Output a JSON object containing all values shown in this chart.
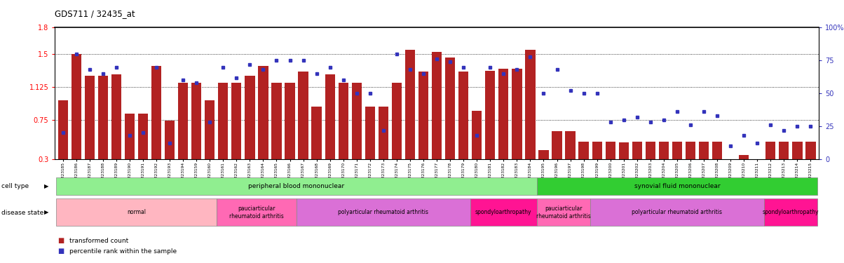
{
  "title": "GDS711 / 32435_at",
  "ylim": [
    0.3,
    1.8
  ],
  "yticks": [
    0.3,
    0.75,
    1.125,
    1.5,
    1.8
  ],
  "ytick_labels": [
    "0.3",
    "0.75",
    "1.125",
    "1.5",
    "1.8"
  ],
  "y_right_ticks": [
    0,
    25,
    50,
    75,
    100
  ],
  "y_right_labels": [
    "0",
    "25",
    "50",
    "75",
    "100%"
  ],
  "samples": [
    "GSM23185",
    "GSM23186",
    "GSM23187",
    "GSM23188",
    "GSM23189",
    "GSM23190",
    "GSM23191",
    "GSM23192",
    "GSM23193",
    "GSM23194",
    "GSM23159",
    "GSM23160",
    "GSM23161",
    "GSM23162",
    "GSM23163",
    "GSM23164",
    "GSM23165",
    "GSM23166",
    "GSM23167",
    "GSM23168",
    "GSM23169",
    "GSM23170",
    "GSM23171",
    "GSM23172",
    "GSM23173",
    "GSM23174",
    "GSM23175",
    "GSM23176",
    "GSM23177",
    "GSM23178",
    "GSM23179",
    "GSM23180",
    "GSM23181",
    "GSM23182",
    "GSM23183",
    "GSM23184",
    "GSM23195",
    "GSM23196",
    "GSM23197",
    "GSM23198",
    "GSM23199",
    "GSM23200",
    "GSM23201",
    "GSM23202",
    "GSM23203",
    "GSM23204",
    "GSM23205",
    "GSM23206",
    "GSM23207",
    "GSM23208",
    "GSM23209",
    "GSM23210",
    "GSM23211",
    "GSM23212",
    "GSM23213",
    "GSM23214",
    "GSM23215"
  ],
  "bar_heights": [
    0.97,
    1.5,
    1.25,
    1.25,
    1.27,
    0.82,
    0.82,
    1.36,
    0.74,
    1.17,
    1.17,
    0.97,
    1.17,
    1.17,
    1.25,
    1.36,
    1.17,
    1.17,
    1.3,
    0.9,
    1.27,
    1.17,
    1.17,
    0.9,
    0.9,
    1.17,
    1.55,
    1.3,
    1.52,
    1.46,
    1.3,
    0.85,
    1.31,
    1.33,
    1.33,
    1.55,
    0.4,
    0.62,
    0.62,
    0.5,
    0.5,
    0.5,
    0.49,
    0.5,
    0.5,
    0.5,
    0.5,
    0.5,
    0.5,
    0.5,
    0.3,
    0.35,
    0.3,
    0.5,
    0.5,
    0.5,
    0.5
  ],
  "blue_dots": [
    20,
    80,
    68,
    65,
    70,
    18,
    20,
    70,
    12,
    60,
    58,
    28,
    70,
    62,
    72,
    68,
    75,
    75,
    75,
    65,
    70,
    60,
    50,
    50,
    22,
    80,
    68,
    65,
    76,
    74,
    70,
    18,
    70,
    65,
    68,
    78,
    50,
    68,
    52,
    50,
    50,
    28,
    30,
    32,
    28,
    30,
    36,
    26,
    36,
    33,
    10,
    18,
    12,
    26,
    22,
    25,
    25
  ],
  "bar_color": "#B22222",
  "dot_color": "#3333BB",
  "cell_type_groups": [
    {
      "label": "peripheral blood mononuclear",
      "start": 0,
      "end": 36,
      "color": "#90EE90"
    },
    {
      "label": "synovial fluid mononuclear",
      "start": 36,
      "end": 57,
      "color": "#32CD32"
    }
  ],
  "disease_groups": [
    {
      "label": "normal",
      "start": 0,
      "end": 12,
      "color": "#FFB6C1"
    },
    {
      "label": "pauciarticular\nrheumatoid arthritis",
      "start": 12,
      "end": 18,
      "color": "#FF69B4"
    },
    {
      "label": "polyarticular rheumatoid arthritis",
      "start": 18,
      "end": 31,
      "color": "#DA70D6"
    },
    {
      "label": "spondyloarthropathy",
      "start": 31,
      "end": 36,
      "color": "#FF1493"
    },
    {
      "label": "pauciarticular\nrheumatoid arthritis",
      "start": 36,
      "end": 40,
      "color": "#FF69B4"
    },
    {
      "label": "polyarticular rheumatoid arthritis",
      "start": 40,
      "end": 53,
      "color": "#DA70D6"
    },
    {
      "label": "spondyloarthropathy",
      "start": 53,
      "end": 57,
      "color": "#FF1493"
    }
  ]
}
